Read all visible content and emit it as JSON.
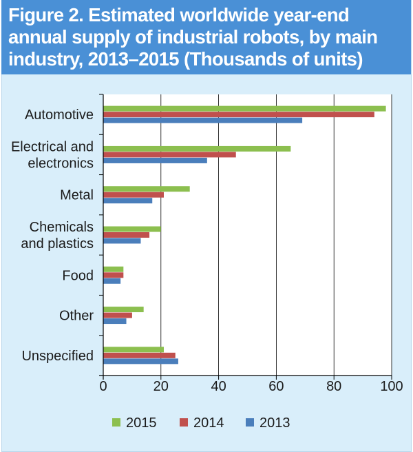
{
  "header": {
    "title": "Figure 2. Estimated worldwide year-end annual supply of industrial robots, by main industry, 2013–2015 (Thousands of units)"
  },
  "chart_data": {
    "type": "bar",
    "orientation": "horizontal",
    "title": "Figure 2. Estimated worldwide year-end annual supply of industrial robots, by main industry, 2013–2015 (Thousands of units)",
    "categories": [
      [
        "Automotive"
      ],
      [
        "Electrical and",
        "electronics"
      ],
      [
        "Metal"
      ],
      [
        "Chemicals",
        "and plastics"
      ],
      [
        "Food"
      ],
      [
        "Other"
      ],
      [
        "Unspecified"
      ]
    ],
    "series": [
      {
        "name": "2015",
        "color": "#8cbf4f",
        "values": [
          98,
          65,
          30,
          20,
          7,
          14,
          21
        ]
      },
      {
        "name": "2014",
        "color": "#c0504d",
        "values": [
          94,
          46,
          21,
          16,
          7,
          10,
          25
        ]
      },
      {
        "name": "2013",
        "color": "#4a7ebb",
        "values": [
          69,
          36,
          17,
          13,
          6,
          8,
          26
        ]
      }
    ],
    "xlim": [
      0,
      100
    ],
    "xticks": [
      0,
      20,
      40,
      60,
      80,
      100
    ],
    "grid": true,
    "legend_position": "bottom-center",
    "xlabel": "",
    "ylabel": ""
  }
}
